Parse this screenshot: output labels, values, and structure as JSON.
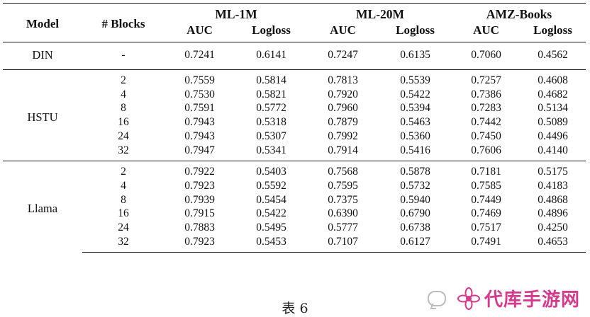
{
  "table": {
    "headers": {
      "model": "Model",
      "blocks": "# Blocks",
      "groups": [
        "ML-1M",
        "ML-20M",
        "AMZ-Books"
      ],
      "metrics": [
        "AUC",
        "Logloss",
        "AUC",
        "Logloss",
        "AUC",
        "Logloss"
      ]
    },
    "din": {
      "model": "DIN",
      "blocks": "-",
      "values": [
        "0.7241",
        "0.6141",
        "0.7247",
        "0.6135",
        "0.7060",
        "0.4562"
      ]
    },
    "hstu": {
      "model": "HSTU",
      "rows": [
        {
          "blocks": "2",
          "values": [
            "0.7559",
            "0.5814",
            "0.7813",
            "0.5539",
            "0.7257",
            "0.4608"
          ]
        },
        {
          "blocks": "4",
          "values": [
            "0.7530",
            "0.5821",
            "0.7920",
            "0.5422",
            "0.7386",
            "0.4682"
          ]
        },
        {
          "blocks": "8",
          "values": [
            "0.7591",
            "0.5772",
            "0.7960",
            "0.5394",
            "0.7283",
            "0.5134"
          ]
        },
        {
          "blocks": "16",
          "values": [
            "0.7943",
            "0.5318",
            "0.7879",
            "0.5463",
            "0.7442",
            "0.5089"
          ]
        },
        {
          "blocks": "24",
          "values": [
            "0.7943",
            "0.5307",
            "0.7992",
            "0.5360",
            "0.7450",
            "0.4496"
          ]
        },
        {
          "blocks": "32",
          "values": [
            "0.7947",
            "0.5341",
            "0.7914",
            "0.5416",
            "0.7606",
            "0.4140"
          ]
        }
      ]
    },
    "llama": {
      "model": "Llama",
      "rows": [
        {
          "blocks": "2",
          "values": [
            "0.7922",
            "0.5403",
            "0.7568",
            "0.5878",
            "0.7181",
            "0.5175"
          ]
        },
        {
          "blocks": "4",
          "values": [
            "0.7923",
            "0.5592",
            "0.7595",
            "0.5732",
            "0.7585",
            "0.4183"
          ]
        },
        {
          "blocks": "8",
          "values": [
            "0.7939",
            "0.5454",
            "0.7375",
            "0.5940",
            "0.7449",
            "0.4868"
          ]
        },
        {
          "blocks": "16",
          "values": [
            "0.7915",
            "0.5422",
            "0.6390",
            "0.6790",
            "0.7469",
            "0.4896"
          ]
        },
        {
          "blocks": "24",
          "values": [
            "0.7883",
            "0.5495",
            "0.5777",
            "0.6738",
            "0.7517",
            "0.4250"
          ]
        },
        {
          "blocks": "32",
          "values": [
            "0.7923",
            "0.5453",
            "0.7107",
            "0.6127",
            "0.7491",
            "0.4653"
          ]
        }
      ]
    }
  },
  "caption": "表 6",
  "watermark": {
    "text": "代库手游网",
    "color": "#d63a8c",
    "icons": [
      "wechat-chat-icon",
      "flower-logo-icon"
    ]
  }
}
